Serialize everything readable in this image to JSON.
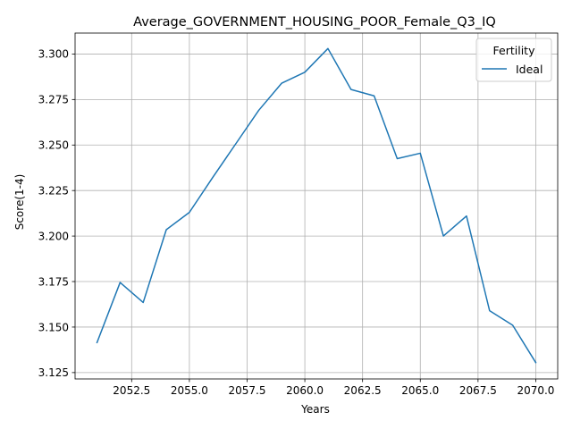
{
  "chart_data": {
    "type": "line",
    "title": "Average_GOVERNMENT_HOUSING_POOR_Female_Q3_IQ",
    "xlabel": "Years",
    "ylabel": "Score(1-4)",
    "xlim": [
      2050.05,
      2070.95
    ],
    "ylim": [
      3.1215,
      3.3115
    ],
    "xticks": [
      2052.5,
      2055.0,
      2057.5,
      2060.0,
      2062.5,
      2065.0,
      2067.5,
      2070.0
    ],
    "xtick_labels": [
      "2052.5",
      "2055.0",
      "2057.5",
      "2060.0",
      "2062.5",
      "2065.0",
      "2067.5",
      "2070.0"
    ],
    "yticks": [
      3.125,
      3.15,
      3.175,
      3.2,
      3.225,
      3.25,
      3.275,
      3.3
    ],
    "ytick_labels": [
      "3.125",
      "3.150",
      "3.175",
      "3.200",
      "3.225",
      "3.250",
      "3.275",
      "3.300"
    ],
    "grid": true,
    "legend": {
      "title": "Fertility",
      "placement": "top-right"
    },
    "series": [
      {
        "name": "Ideal",
        "color": "#1f77b4",
        "x": [
          2051,
          2052,
          2053,
          2054,
          2055,
          2056,
          2057,
          2058,
          2059,
          2060,
          2061,
          2062,
          2063,
          2064,
          2065,
          2066,
          2067,
          2068,
          2069,
          2070
        ],
        "y": [
          3.1415,
          3.1745,
          3.1635,
          3.2035,
          3.213,
          3.232,
          3.2505,
          3.269,
          3.284,
          3.29,
          3.303,
          3.2805,
          3.277,
          3.2425,
          3.2455,
          3.2,
          3.211,
          3.159,
          3.151,
          3.1305
        ]
      }
    ]
  }
}
